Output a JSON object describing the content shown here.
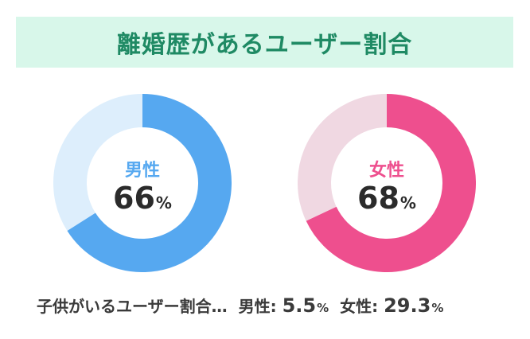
{
  "title": "離婚歴があるユーザー割合",
  "colors": {
    "banner_bg": "#d8f7ea",
    "title": "#1f8a64",
    "male_fill": "#56a8f0",
    "male_track": "#ddeefc",
    "male_label": "#56a8f0",
    "female_fill": "#ee4f8e",
    "female_track": "#f0d8e2",
    "female_label": "#ee4f8e"
  },
  "chart_data": [
    {
      "type": "pie",
      "title": "",
      "center_label": "男性",
      "value": 66,
      "value_display": "66",
      "unit": "%",
      "slices": [
        {
          "label": "男性",
          "value": 66
        },
        {
          "label": "",
          "value": 34
        }
      ]
    },
    {
      "type": "pie",
      "title": "",
      "center_label": "女性",
      "value": 68,
      "value_display": "68",
      "unit": "%",
      "slices": [
        {
          "label": "女性",
          "value": 68
        },
        {
          "label": "",
          "value": 32
        }
      ]
    }
  ],
  "footer": {
    "caption": "子供がいるユーザー割合…",
    "male_label": "男性:",
    "male_value": "5.5",
    "male_unit": "%",
    "female_label": "女性:",
    "female_value": "29.3",
    "female_unit": "%"
  }
}
